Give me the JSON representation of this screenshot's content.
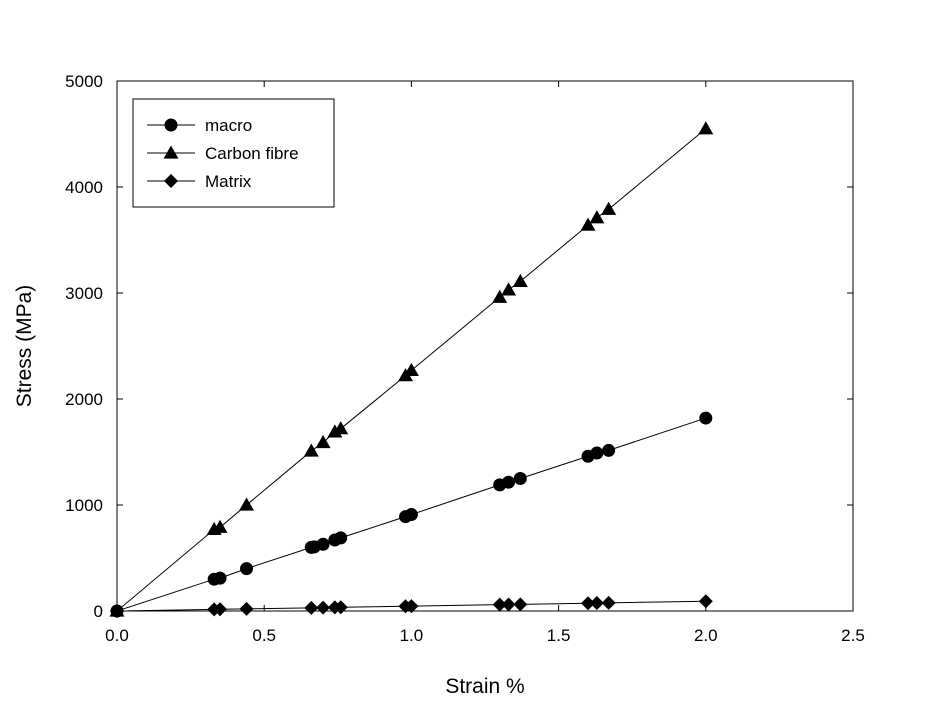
{
  "chart_data": {
    "type": "line",
    "xlabel": "Strain %",
    "ylabel": "Stress (MPa)",
    "xlim": [
      0,
      2.5
    ],
    "ylim": [
      0,
      5000
    ],
    "x_ticks": [
      "0.0",
      "0.5",
      "1.0",
      "1.5",
      "2.0",
      "2.5"
    ],
    "y_ticks": [
      "0",
      "1000",
      "2000",
      "3000",
      "4000",
      "5000"
    ],
    "grid": false,
    "legend_position": "top-left",
    "series": [
      {
        "name": "macro",
        "marker": "circle",
        "points": [
          [
            0,
            0
          ],
          [
            0.33,
            300
          ],
          [
            0.35,
            310
          ],
          [
            0.44,
            400
          ],
          [
            0.66,
            600
          ],
          [
            0.67,
            605
          ],
          [
            0.7,
            630
          ],
          [
            0.74,
            670
          ],
          [
            0.76,
            690
          ],
          [
            0.98,
            890
          ],
          [
            1.0,
            910
          ],
          [
            1.3,
            1190
          ],
          [
            1.33,
            1215
          ],
          [
            1.37,
            1250
          ],
          [
            1.6,
            1460
          ],
          [
            1.63,
            1490
          ],
          [
            1.67,
            1515
          ],
          [
            2.0,
            1820
          ]
        ]
      },
      {
        "name": "Carbon fibre",
        "marker": "triangle",
        "points": [
          [
            0,
            0
          ],
          [
            0.33,
            770
          ],
          [
            0.35,
            790
          ],
          [
            0.44,
            1000
          ],
          [
            0.66,
            1510
          ],
          [
            0.7,
            1590
          ],
          [
            0.74,
            1690
          ],
          [
            0.76,
            1720
          ],
          [
            0.98,
            2220
          ],
          [
            1.0,
            2270
          ],
          [
            1.3,
            2960
          ],
          [
            1.33,
            3030
          ],
          [
            1.37,
            3110
          ],
          [
            1.6,
            3640
          ],
          [
            1.63,
            3710
          ],
          [
            1.67,
            3790
          ],
          [
            2.0,
            4550
          ]
        ]
      },
      {
        "name": "Matrix",
        "marker": "diamond",
        "points": [
          [
            0,
            0
          ],
          [
            0.33,
            15
          ],
          [
            0.35,
            16
          ],
          [
            0.44,
            20
          ],
          [
            0.66,
            30
          ],
          [
            0.7,
            32
          ],
          [
            0.74,
            34
          ],
          [
            0.76,
            35
          ],
          [
            0.98,
            45
          ],
          [
            1.0,
            46
          ],
          [
            1.3,
            60
          ],
          [
            1.33,
            61
          ],
          [
            1.37,
            63
          ],
          [
            1.6,
            73
          ],
          [
            1.63,
            75
          ],
          [
            1.67,
            77
          ],
          [
            2.0,
            92
          ]
        ]
      }
    ]
  }
}
